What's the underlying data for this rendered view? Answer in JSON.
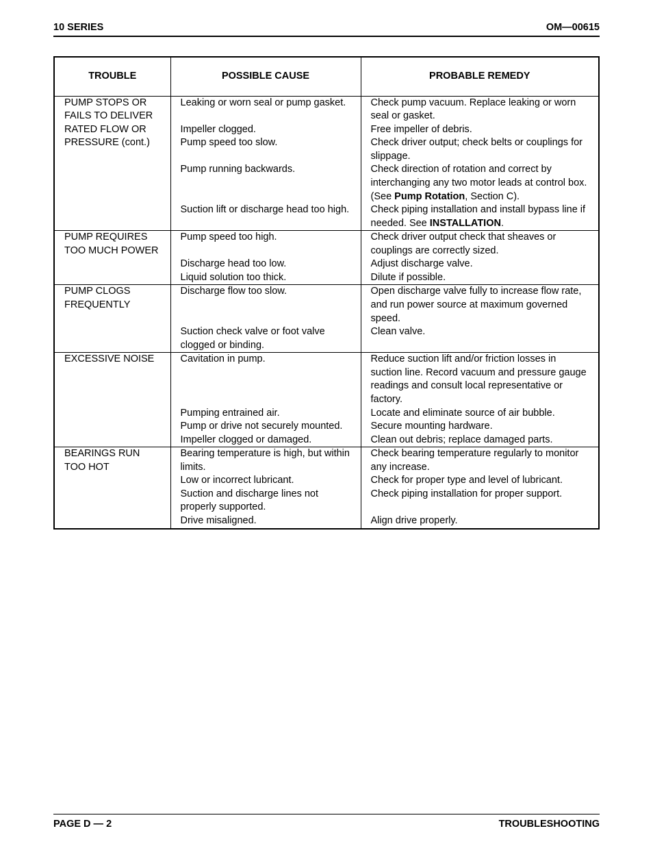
{
  "header": {
    "left": "10 SERIES",
    "right": "OM—00615"
  },
  "columns": {
    "trouble": "TROUBLE",
    "cause": "POSSIBLE CAUSE",
    "remedy": "PROBABLE REMEDY"
  },
  "rows": [
    {
      "trouble": "PUMP STOPS OR FAILS TO DELIVER RATED FLOW OR PRESSURE (cont.)",
      "cause": "Leaking or worn seal or pump gasket.",
      "remedy": "Check pump vacuum. Replace leaking or worn seal or gasket.",
      "group_start": true,
      "remedy_justify": true
    },
    {
      "cause": "Impeller clogged.",
      "remedy": "Free impeller of debris."
    },
    {
      "cause": "Pump speed too slow.",
      "remedy": "Check driver output; check belts or couplings for slippage."
    },
    {
      "cause": "Pump running backwards.",
      "remedy_html": "Check direction of rotation and correct by interchanging any two motor leads at control box. (See <b>Pump Rotation</b>, Section C).",
      "remedy_justify": true
    },
    {
      "cause": "Suction lift or discharge head too high.",
      "remedy_html": "Check piping installation and install bypass line if needed. See <b>INSTALLATION</b>.",
      "last": true
    },
    {
      "trouble": "PUMP REQUIRES TOO MUCH POWER",
      "cause": "Pump speed too high.",
      "remedy": "Check driver output check that sheaves or couplings are correctly sized.",
      "group_start": true,
      "remedy_justify": true
    },
    {
      "cause": "Discharge head too low.",
      "remedy": "Adjust discharge valve."
    },
    {
      "cause": "Liquid solution too thick.",
      "remedy": "Dilute if possible.",
      "last": true
    },
    {
      "trouble": "PUMP CLOGS FREQUENTLY",
      "cause": "Discharge flow too slow.",
      "remedy": "Open discharge valve fully to increase flow rate, and run power source at maximum governed speed.",
      "group_start": true,
      "remedy_justify": true
    },
    {
      "cause": "Suction check valve or foot valve clogged or binding.",
      "remedy": "Clean valve.",
      "cause_justify": true,
      "last": true
    },
    {
      "trouble": "EXCESSIVE NOISE",
      "cause": "Cavitation in pump.",
      "remedy": "Reduce suction lift and/or friction losses in suction line. Record vacuum and pressure gauge readings and consult local representative or factory.",
      "group_start": true
    },
    {
      "cause": "Pumping entrained air.",
      "remedy": "Locate and eliminate source of air bubble."
    },
    {
      "cause": "Pump or drive not securely mounted.",
      "remedy": "Secure mounting hardware.",
      "remedy_justify": true
    },
    {
      "cause": "Impeller clogged or damaged.",
      "remedy": "Clean out debris; replace damaged parts.",
      "last": true
    },
    {
      "trouble": "BEARINGS RUN TOO HOT",
      "cause": "Bearing temperature is high, but within limits.",
      "remedy": "Check bearing temperature regularly to monitor any increase.",
      "group_start": true,
      "cause_justify": true
    },
    {
      "cause": "Low or incorrect lubricant.",
      "remedy": "Check for proper type and level of lubricant."
    },
    {
      "cause": "Suction and discharge lines not properly supported.",
      "remedy": "Check piping installation for proper support."
    },
    {
      "cause": "Drive misaligned.",
      "remedy": "Align drive properly.",
      "last": true
    }
  ],
  "footer": {
    "left": "PAGE D — 2",
    "right": "TROUBLESHOOTING"
  }
}
